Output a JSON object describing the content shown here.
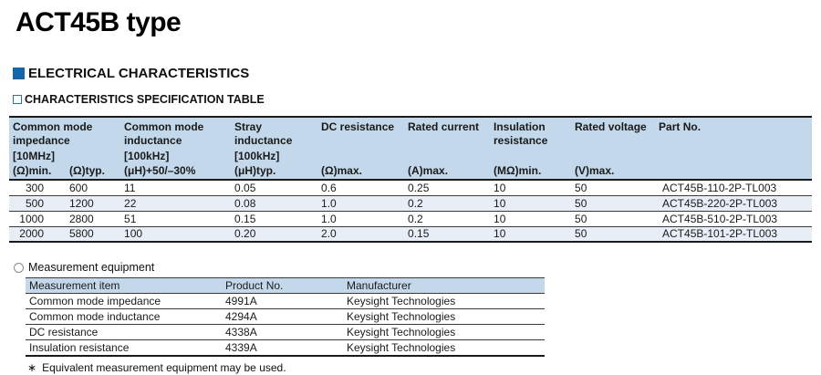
{
  "page": {
    "title": "ACT45B type"
  },
  "sections": {
    "electrical_label": "ELECTRICAL CHARACTERISTICS",
    "spec_label": "CHARACTERISTICS SPECIFICATION TABLE"
  },
  "spec": {
    "header": {
      "col1_name": "Common mode impedance",
      "col2_name": "Common mode inductance",
      "col3_name": "Stray inductance",
      "col4_name": "DC resistance",
      "col5_name": "Rated current",
      "col6_name": "Insulation resistance",
      "col7_name": "Rated voltage",
      "col8_name": "Part No.",
      "col1_cond": "[10MHz]",
      "col2_cond": "[100kHz]",
      "col3_cond": "[100kHz]",
      "unit1": "(Ω)min.",
      "unit2": "(Ω)typ.",
      "unit3": "(μH)+50/–30%",
      "unit4": "(μH)typ.",
      "unit5": "(Ω)max.",
      "unit6": "(A)max.",
      "unit7": "(MΩ)min.",
      "unit8": "(V)max."
    },
    "rows": [
      [
        "300",
        "600",
        "11",
        "0.05",
        "0.6",
        "0.25",
        "10",
        "50",
        "ACT45B-110-2P-TL003"
      ],
      [
        "500",
        "1200",
        "22",
        "0.08",
        "1.0",
        "0.2",
        "10",
        "50",
        "ACT45B-220-2P-TL003"
      ],
      [
        "1000",
        "2800",
        "51",
        "0.15",
        "1.0",
        "0.2",
        "10",
        "50",
        "ACT45B-510-2P-TL003"
      ],
      [
        "2000",
        "5800",
        "100",
        "0.20",
        "2.0",
        "0.15",
        "10",
        "50",
        "ACT45B-101-2P-TL003"
      ]
    ]
  },
  "measurement": {
    "label": "Measurement equipment",
    "columns": [
      "Measurement item",
      "Product No.",
      "Manufacturer"
    ],
    "rows": [
      [
        "Common mode impedance",
        "4991A",
        "Keysight Technologies"
      ],
      [
        "Common mode inductance",
        "4294A",
        "Keysight Technologies"
      ],
      [
        "DC resistance",
        "4338A",
        "Keysight Technologies"
      ],
      [
        "Insulation resistance",
        "4339A",
        "Keysight Technologies"
      ]
    ],
    "footnote_marker": "∗",
    "footnote": "Equivalent measurement equipment may be used."
  },
  "colors": {
    "accent_blue": "#1565ab",
    "table_header_bg": "#c3d8ea",
    "row_alt_bg": "#e8eef6"
  }
}
